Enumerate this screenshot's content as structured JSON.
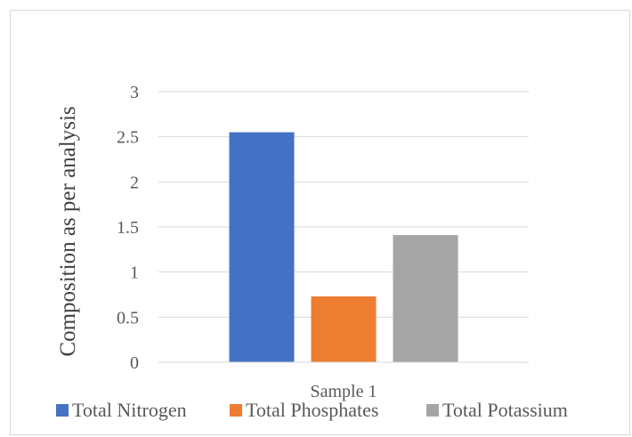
{
  "chart_data": {
    "type": "bar",
    "title": "",
    "xlabel": "",
    "ylabel": "Composition as per analysis",
    "categories": [
      "Sample 1"
    ],
    "series": [
      {
        "name": "Total Nitrogen",
        "values": [
          2.55
        ],
        "color": "#4472c4"
      },
      {
        "name": "Total Phosphates",
        "values": [
          0.73
        ],
        "color": "#ed7d31"
      },
      {
        "name": "Total Potassium",
        "values": [
          1.41
        ],
        "color": "#a5a5a5"
      }
    ],
    "yticks": [
      "0",
      "0.5",
      "1",
      "1.5",
      "2",
      "2.5",
      "3"
    ],
    "ylim": [
      0,
      3
    ],
    "grid": true,
    "legend_position": "bottom"
  }
}
